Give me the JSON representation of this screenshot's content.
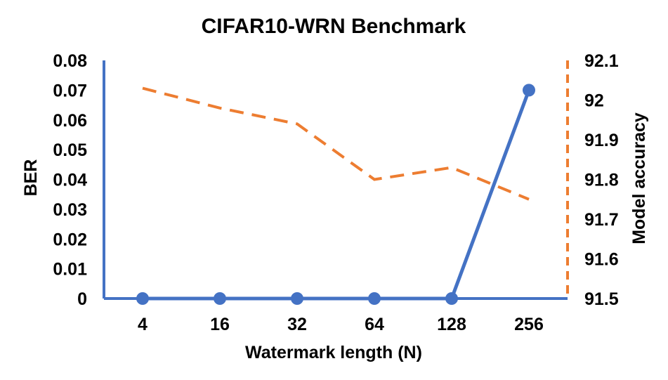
{
  "chart_data": {
    "type": "line",
    "title": "CIFAR10-WRN Benchmark",
    "xlabel": "Watermark length (N)",
    "ylabel": "BER",
    "y2label": "Model accuracy",
    "categories": [
      "4",
      "16",
      "32",
      "64",
      "128",
      "256"
    ],
    "ylim": [
      0,
      0.08
    ],
    "y2lim": [
      91.5,
      92.1
    ],
    "yticks": [
      "0",
      "0.01",
      "0.02",
      "0.03",
      "0.04",
      "0.05",
      "0.06",
      "0.07",
      "0.08"
    ],
    "y2ticks": [
      "91.5",
      "91.6",
      "91.7",
      "91.8",
      "91.9",
      "92",
      "92.1"
    ],
    "grid": false,
    "legend": "none",
    "series": [
      {
        "axis": "left",
        "style": "solid-markers",
        "color": "#4472C4",
        "values": [
          0,
          0,
          0,
          0,
          0,
          0.07
        ]
      },
      {
        "axis": "right",
        "style": "dashed",
        "color": "#ED7D31",
        "values": [
          92.03,
          91.98,
          91.94,
          91.8,
          91.83,
          91.75
        ]
      }
    ]
  }
}
